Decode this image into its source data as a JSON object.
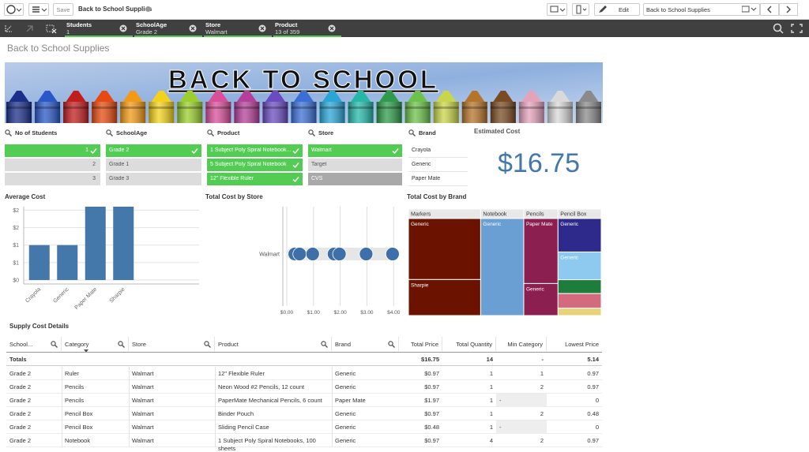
{
  "toolbar": {
    "save": "Save",
    "app_title": "Back to School Supplies",
    "edit": "Edit",
    "sheet_name": "Back to School Supplies"
  },
  "selections": [
    {
      "field": "Students",
      "value": "1"
    },
    {
      "field": "SchoolAge",
      "value": "Grade 2"
    },
    {
      "field": "Store",
      "value": "Walmart"
    },
    {
      "field": "Product",
      "value": "13 of 359"
    }
  ],
  "sheet_title": "Back to School Supplies",
  "banner": {
    "text": "BACK TO SCHOOL"
  },
  "filters": [
    {
      "title": "No of Students",
      "items": [
        {
          "label": "1",
          "state": "selected"
        },
        {
          "label": "2",
          "state": "alternative"
        },
        {
          "label": "3",
          "state": "alternative"
        }
      ]
    },
    {
      "title": "SchoolAge",
      "items": [
        {
          "label": "Grade 2",
          "state": "selected"
        },
        {
          "label": "Grade 1",
          "state": "alternative"
        },
        {
          "label": "Grade 3",
          "state": "alternative"
        }
      ]
    },
    {
      "title": "Product",
      "items": [
        {
          "label": "1 Subject Poly Spiral Notebook...",
          "state": "selected"
        },
        {
          "label": "5 Subject Poly Spiral Notebook",
          "state": "selected"
        },
        {
          "label": "12\" Flexible Ruler",
          "state": "selected"
        }
      ]
    },
    {
      "title": "Store",
      "items": [
        {
          "label": "Walmart",
          "state": "selected"
        },
        {
          "label": "Target",
          "state": "alternative"
        },
        {
          "label": "CVS",
          "state": "excluded"
        }
      ]
    },
    {
      "title": "Brand",
      "items": [
        {
          "label": "Crayola",
          "state": "possible"
        },
        {
          "label": "Generic",
          "state": "possible"
        },
        {
          "label": "Paper Mate",
          "state": "possible"
        }
      ]
    }
  ],
  "kpi": {
    "title": "Estimated Cost",
    "value": "$16.75"
  },
  "chart_data": [
    {
      "type": "bar",
      "title": "Average Cost",
      "categories": [
        "Crayola",
        "Generic",
        "Paper Mate",
        "Sharpie"
      ],
      "values": [
        1,
        1,
        2.1,
        2.1
      ],
      "color": "#4477aa",
      "ylim": [
        0,
        2.1
      ],
      "yticks": [
        {
          "value": 0,
          "label": "$0"
        },
        {
          "value": 0.5,
          "label": "$1"
        },
        {
          "value": 1,
          "label": "$1"
        },
        {
          "value": 1.5,
          "label": "$2"
        },
        {
          "value": 2,
          "label": "$2"
        }
      ],
      "grid": true
    },
    {
      "type": "dot",
      "title": "Total Cost by Store",
      "categories": [
        "Walmart"
      ],
      "values": [
        [
          0.3,
          0.48,
          0.97,
          1.77,
          1.97,
          2.97,
          3.96
        ]
      ],
      "color": "#3f6fa8",
      "xlim": [
        0,
        4.2
      ],
      "xticks": [
        {
          "value": 0,
          "label": "$0.00"
        },
        {
          "value": 1,
          "label": "$1.00"
        },
        {
          "value": 2,
          "label": "$2.00"
        },
        {
          "value": 3,
          "label": "$3.00"
        },
        {
          "value": 4,
          "label": "$4.00"
        }
      ],
      "grid": true
    },
    {
      "type": "treemap",
      "title": "Total Cost by Brand",
      "groups": [
        {
          "name": "Markers",
          "children": [
            {
              "name": "Generic",
              "value": 3.9,
              "color": "#6b1300"
            },
            {
              "name": "Sharpie",
              "value": 2.3,
              "color": "#6b1300"
            }
          ]
        },
        {
          "name": "Notebook",
          "children": [
            {
              "name": "Generic",
              "value": 3.7,
              "color": "#6a9fd4"
            }
          ]
        },
        {
          "name": "Pencils",
          "children": [
            {
              "name": "Paper Mate",
              "value": 1.97,
              "color": "#8a1f50"
            },
            {
              "name": "Generic",
              "value": 0.97,
              "color": "#8a1f50"
            }
          ]
        },
        {
          "name": "Pencil Box",
          "children": [
            {
              "name": "Generic",
              "value": 1.28,
              "color": "#2e2a8c"
            },
            {
              "name": "Generic",
              "value": 1.06,
              "color": "#8ec9ef"
            },
            {
              "name": null,
              "value": 0.53,
              "color": "#1e7d3a"
            },
            {
              "name": null,
              "value": 0.56,
              "color": "#d46a7e"
            },
            {
              "name": null,
              "value": 0.28,
              "color": "#e8d27a"
            }
          ]
        }
      ]
    }
  ],
  "table": {
    "title": "Supply Cost Details",
    "columns": [
      "School...",
      "Category",
      "Store",
      "Product",
      "Brand",
      "Total Price",
      "Total Quantity",
      "Min Category",
      "Lowest Price"
    ],
    "totals": {
      "label": "Totals",
      "total_price": "$16.75",
      "total_quantity": "14",
      "min_category": "-",
      "lowest_price": "5.14"
    },
    "rows": [
      [
        "Grade 2",
        "Ruler",
        "Walmart",
        "12\" Flexible Ruler",
        "Generic",
        "$0.97",
        "1",
        "1",
        "0.97"
      ],
      [
        "Grade 2",
        "Pencils",
        "Walmart",
        "Neon Wood #2 Pencils, 12 count",
        "Generic",
        "$0.97",
        "1",
        "2",
        "0.97"
      ],
      [
        "Grade 2",
        "Pencils",
        "Walmart",
        "PaperMate Mechanical Pencils, 6 count",
        "Paper Mate",
        "$1.97",
        "1",
        "-",
        "0"
      ],
      [
        "Grade 2",
        "Pencil Box",
        "Walmart",
        "Binder Pouch",
        "Generic",
        "$0.97",
        "1",
        "2",
        "0.48"
      ],
      [
        "Grade 2",
        "Pencil Box",
        "Walmart",
        "Sliding Pencil Case",
        "Generic",
        "$0.48",
        "1",
        "-",
        "0"
      ],
      [
        "Grade 2",
        "Notebook",
        "Walmart",
        "1 Subject Poly Spiral Notebooks, 100 sheets",
        "Generic",
        "$0.97",
        "4",
        "2",
        "0.97"
      ]
    ]
  }
}
